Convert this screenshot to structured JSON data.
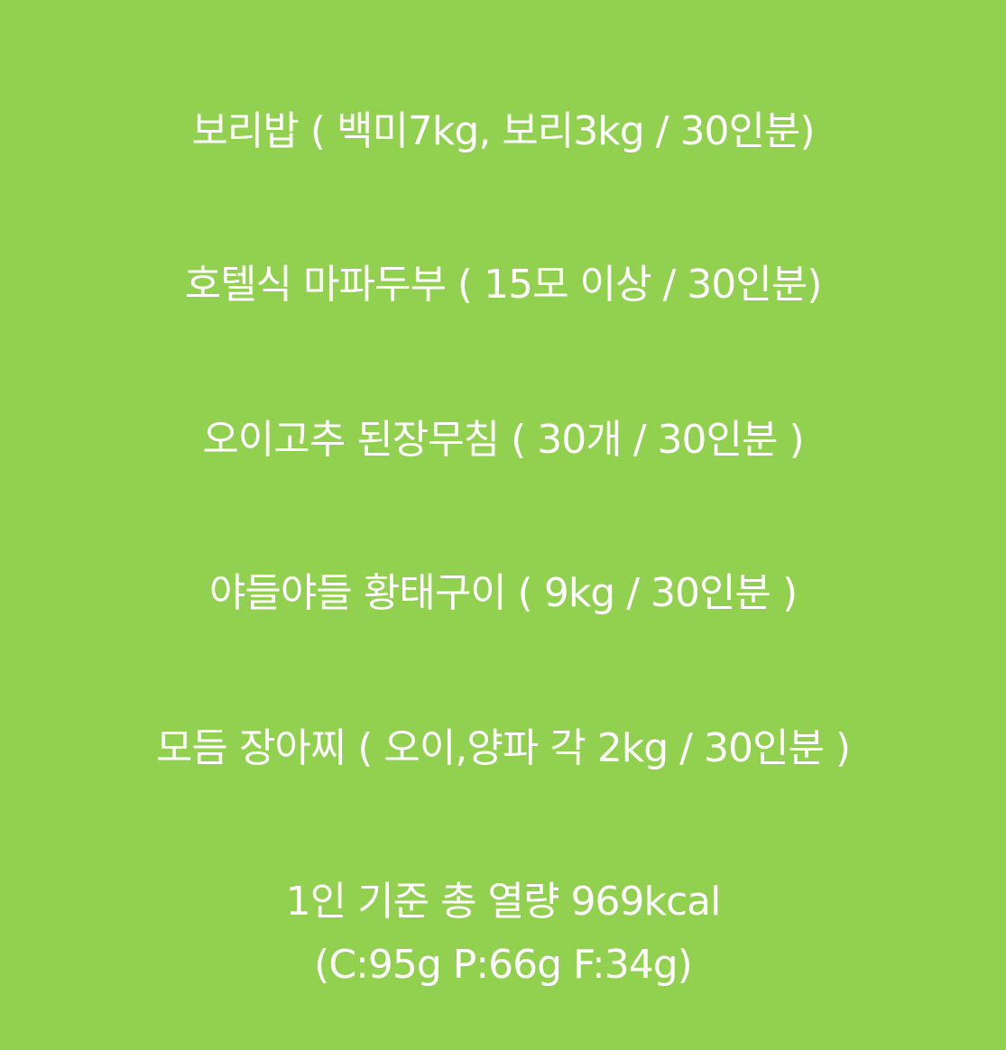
{
  "background_color": "#92d050",
  "text_color": "#ffffff",
  "menu": {
    "items": [
      "보리밥 ( 백미7kg, 보리3kg / 30인분)",
      "호텔식 마파두부 ( 15모 이상 / 30인분)",
      "오이고추 된장무침 ( 30개 / 30인분 )",
      "야들야들 황태구이 ( 9kg / 30인분 )",
      "모듬 장아찌 ( 오이,양파 각 2kg / 30인분 )"
    ]
  },
  "nutrition": {
    "calories": "1인 기준 총 열량 969kcal",
    "macros": "(C:95g P:66g F:34g)"
  }
}
